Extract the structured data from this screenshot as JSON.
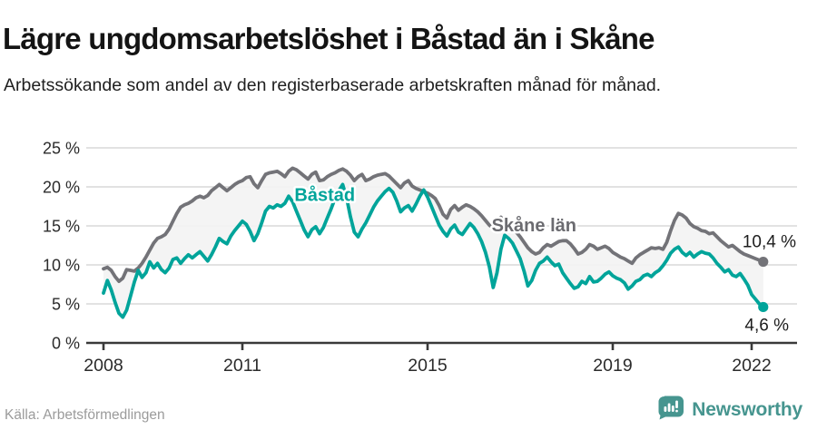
{
  "header": {
    "title": "Lägre ungdomsarbetslöshet i Båstad än i Skåne",
    "subtitle": "Arbetssökande som andel av den registerbaserade arbetskraften månad för månad."
  },
  "footer": {
    "source": "Källa: Arbetsförmedlingen",
    "brand": "Newsworthy"
  },
  "colors": {
    "bastad": "#00a49a",
    "skane": "#737378",
    "band": "#f3f3f3",
    "gridline": "#d8d8d8",
    "axis": "#3a3a3a",
    "tick_label": "#2b2b2b",
    "end_label": "#1d1d1d",
    "source_text": "#9b9b9b",
    "brand_teal": "#46958f",
    "background": "#ffffff"
  },
  "chart_data": {
    "type": "line",
    "title": "Lägre ungdomsarbetslöshet i Båstad än i Skåne",
    "subtitle": "Arbetssökande som andel av den registerbaserade arbetskraften månad för månad.",
    "x_unit": "month",
    "x_start": "2008-01",
    "x_end": "2022-04",
    "ylim": [
      0,
      25
    ],
    "grid": true,
    "legend_position": "inline-labels",
    "y_ticks": [
      {
        "label": "0 %",
        "value": 0
      },
      {
        "label": "5 %",
        "value": 5
      },
      {
        "label": "10 %",
        "value": 10
      },
      {
        "label": "15 %",
        "value": 15
      },
      {
        "label": "20 %",
        "value": 20
      },
      {
        "label": "25 %",
        "value": 25
      }
    ],
    "x_ticks": [
      {
        "label": "2008",
        "year": 2008
      },
      {
        "label": "2011",
        "year": 2011
      },
      {
        "label": "2015",
        "year": 2015
      },
      {
        "label": "2019",
        "year": 2019
      },
      {
        "label": "2022",
        "year": 2022
      }
    ],
    "series": [
      {
        "name": "Skåne län",
        "color": "#737378",
        "end_label": "10,4 %",
        "end_value": 10.4,
        "values": [
          9.5,
          9.7,
          9.3,
          8.5,
          7.9,
          8.3,
          9.4,
          9.3,
          9.2,
          9.6,
          10.2,
          11.0,
          11.9,
          12.8,
          13.4,
          13.6,
          13.9,
          14.6,
          15.6,
          16.6,
          17.4,
          17.7,
          17.9,
          18.2,
          18.6,
          18.8,
          18.6,
          18.9,
          19.5,
          19.9,
          20.3,
          19.9,
          19.5,
          19.9,
          20.3,
          20.6,
          20.8,
          21.2,
          21.3,
          20.4,
          19.9,
          20.8,
          21.6,
          21.8,
          21.9,
          22.0,
          21.7,
          21.3,
          22.0,
          22.4,
          22.2,
          21.8,
          21.4,
          21.0,
          21.6,
          21.9,
          20.8,
          20.9,
          21.3,
          21.6,
          21.8,
          22.1,
          22.3,
          22.0,
          21.5,
          20.8,
          21.3,
          21.6,
          20.8,
          21.0,
          21.3,
          21.5,
          21.6,
          21.7,
          21.4,
          20.9,
          20.4,
          19.9,
          20.5,
          20.8,
          20.1,
          19.8,
          19.6,
          19.4,
          19.2,
          18.9,
          18.5,
          17.6,
          16.5,
          16.0,
          17.1,
          17.6,
          17.0,
          17.4,
          17.7,
          17.5,
          17.2,
          16.8,
          16.3,
          15.7,
          15.1,
          14.7,
          15.6,
          16.1,
          15.5,
          15.2,
          14.8,
          14.2,
          13.6,
          12.9,
          12.2,
          11.7,
          11.4,
          11.6,
          12.2,
          12.6,
          12.4,
          12.7,
          13.0,
          13.1,
          13.1,
          12.7,
          12.1,
          11.4,
          11.6,
          12.0,
          12.6,
          12.4,
          12.0,
          12.2,
          12.4,
          12.1,
          11.6,
          11.3,
          11.0,
          10.8,
          10.5,
          10.2,
          10.9,
          11.3,
          11.6,
          11.9,
          12.2,
          12.1,
          12.2,
          12.0,
          12.9,
          14.4,
          15.7,
          16.6,
          16.4,
          16.0,
          15.3,
          14.9,
          14.7,
          14.4,
          14.3,
          14.0,
          14.1,
          13.6,
          13.1,
          12.7,
          12.3,
          12.5,
          12.1,
          11.7,
          11.4,
          11.2,
          11.0,
          10.8,
          10.6,
          10.4
        ]
      },
      {
        "name": "Båstad",
        "color": "#00a49a",
        "end_label": "4,6 %",
        "end_value": 4.6,
        "values": [
          6.4,
          8.0,
          6.8,
          5.2,
          3.8,
          3.3,
          4.2,
          6.0,
          7.8,
          9.3,
          8.4,
          9.0,
          10.4,
          9.6,
          10.2,
          9.4,
          9.0,
          9.6,
          10.7,
          10.9,
          10.2,
          10.8,
          11.3,
          10.9,
          11.3,
          11.7,
          11.1,
          10.5,
          11.3,
          12.3,
          13.4,
          13.0,
          12.7,
          13.7,
          14.4,
          15.0,
          15.6,
          15.2,
          14.3,
          13.1,
          14.0,
          15.4,
          16.9,
          17.5,
          17.3,
          17.7,
          17.5,
          17.9,
          18.8,
          18.1,
          16.9,
          15.7,
          14.5,
          13.6,
          14.5,
          14.9,
          14.0,
          14.8,
          16.0,
          17.2,
          18.5,
          19.5,
          20.3,
          18.6,
          16.2,
          14.2,
          13.6,
          14.6,
          15.4,
          16.4,
          17.4,
          18.2,
          18.8,
          19.4,
          19.8,
          19.3,
          18.2,
          16.8,
          17.3,
          17.6,
          16.9,
          17.8,
          18.8,
          19.6,
          18.7,
          17.5,
          16.3,
          15.1,
          14.3,
          13.7,
          14.6,
          15.1,
          14.2,
          13.9,
          14.6,
          15.3,
          14.8,
          14.0,
          13.0,
          11.6,
          9.8,
          7.1,
          9.0,
          12.0,
          13.8,
          13.4,
          12.8,
          11.8,
          10.8,
          9.2,
          7.3,
          8.0,
          9.3,
          10.2,
          10.5,
          11.0,
          10.4,
          9.9,
          10.1,
          9.0,
          8.3,
          7.6,
          7.0,
          7.2,
          7.9,
          7.6,
          8.5,
          7.8,
          7.9,
          8.3,
          8.8,
          9.1,
          8.6,
          8.3,
          8.1,
          7.7,
          6.9,
          7.3,
          7.9,
          8.1,
          8.6,
          8.8,
          8.5,
          9.0,
          9.3,
          9.9,
          10.6,
          11.5,
          12.0,
          12.3,
          11.6,
          11.2,
          11.6,
          11.0,
          11.4,
          11.7,
          11.5,
          11.4,
          10.9,
          10.2,
          9.7,
          9.1,
          9.4,
          8.7,
          8.5,
          8.9,
          8.2,
          7.4,
          6.2,
          5.6,
          5.0,
          4.6
        ]
      }
    ],
    "annotations": [
      {
        "text": "Båstad",
        "x": 2012.78,
        "y": 19.0,
        "color": "#00a49a"
      },
      {
        "text": "Skåne län",
        "x": 2017.3,
        "y": 15.1,
        "color": "#6b6b70"
      }
    ]
  }
}
